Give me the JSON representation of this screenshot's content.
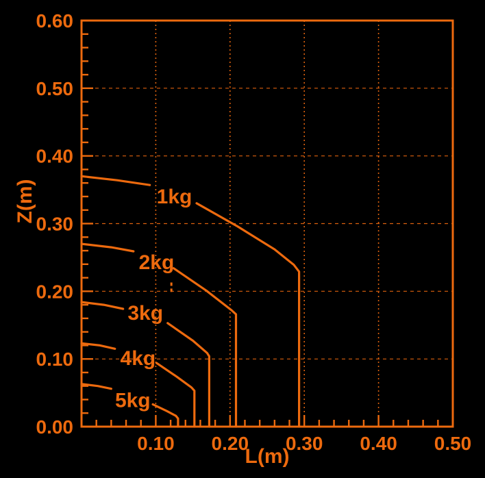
{
  "figure": {
    "background": "#000000",
    "accent": "#ED6A0E"
  },
  "chart_data": {
    "type": "line",
    "title": "",
    "xlabel": "L(m)",
    "ylabel": "Z(m)",
    "xlim": [
      0,
      0.5
    ],
    "ylim": [
      0,
      0.6
    ],
    "grid": {
      "vertical_style": "dotted",
      "horizontal_style": "dashed",
      "enabled": true
    },
    "legend_position": "none",
    "x_major_ticks": [
      0.1,
      0.2,
      0.3,
      0.4,
      0.5
    ],
    "x_tick_labels": [
      "0.10",
      "0.20",
      "0.30",
      "0.40",
      "0.50"
    ],
    "y_major_ticks": [
      0.0,
      0.1,
      0.2,
      0.3,
      0.4,
      0.5,
      0.6
    ],
    "y_tick_labels": [
      "0.00",
      "0.10",
      "0.20",
      "0.30",
      "0.40",
      "0.50",
      "0.60"
    ],
    "minor_tick_step": 0.02,
    "colors": {
      "line": "#ED6A0E",
      "grid": "#DD610E",
      "text": "#ED6A0E"
    },
    "series": [
      {
        "label": "1kg",
        "label_pos": [
          0.125,
          0.341
        ],
        "max_reach_L": 0.293,
        "start_Z": 0.37,
        "segments": [
          [
            [
              0,
              0.37
            ],
            [
              0.048,
              0.364
            ],
            [
              0.092,
              0.357
            ]
          ],
          [
            [
              0.155,
              0.33
            ],
            [
              0.21,
              0.296
            ],
            [
              0.26,
              0.262
            ],
            [
              0.286,
              0.239
            ],
            [
              0.293,
              0.229
            ],
            [
              0.293,
              0
            ]
          ]
        ]
      },
      {
        "label": "2kg",
        "label_pos": [
          0.101,
          0.244
        ],
        "max_reach_L": 0.208,
        "start_Z": 0.27,
        "segments": [
          [
            [
              0,
              0.27
            ],
            [
              0.04,
              0.265
            ],
            [
              0.07,
              0.259
            ]
          ],
          [
            [
              0.124,
              0.234
            ],
            [
              0.168,
              0.201
            ],
            [
              0.202,
              0.172
            ],
            [
              0.208,
              0.166
            ],
            [
              0.208,
              0
            ]
          ]
        ]
      },
      {
        "label": "3kg",
        "label_pos": [
          0.086,
          0.169
        ],
        "max_reach_L": 0.172,
        "start_Z": 0.184,
        "segments": [
          [
            [
              0,
              0.184
            ],
            [
              0.03,
              0.18
            ],
            [
              0.056,
              0.174
            ]
          ],
          [
            [
              0.116,
              0.153
            ],
            [
              0.15,
              0.127
            ],
            [
              0.169,
              0.109
            ],
            [
              0.172,
              0.104
            ],
            [
              0.172,
              0
            ]
          ]
        ]
      },
      {
        "label": "4kg",
        "label_pos": [
          0.076,
          0.102
        ],
        "max_reach_L": 0.152,
        "start_Z": 0.123,
        "segments": [
          [
            [
              0,
              0.123
            ],
            [
              0.025,
              0.12
            ],
            [
              0.045,
              0.115
            ]
          ],
          [
            [
              0.101,
              0.094
            ],
            [
              0.128,
              0.074
            ],
            [
              0.148,
              0.058
            ],
            [
              0.152,
              0.053
            ],
            [
              0.152,
              0
            ]
          ]
        ]
      },
      {
        "label": "5kg",
        "label_pos": [
          0.069,
          0.04
        ],
        "max_reach_L": 0.13,
        "start_Z": 0.063,
        "segments": [
          [
            [
              0,
              0.063
            ],
            [
              0.022,
              0.06
            ],
            [
              0.04,
              0.056
            ]
          ],
          [
            [
              0.096,
              0.033
            ],
            [
              0.115,
              0.023
            ],
            [
              0.127,
              0.016
            ],
            [
              0.13,
              0.012
            ],
            [
              0.13,
              0
            ]
          ]
        ]
      }
    ],
    "annotations": [
      {
        "type": "stray-dash",
        "L": 0.121,
        "z_from": 0.199,
        "z_to": 0.204
      },
      {
        "type": "stray-dash",
        "L": 0.121,
        "z_from": 0.208,
        "z_to": 0.213
      }
    ]
  }
}
